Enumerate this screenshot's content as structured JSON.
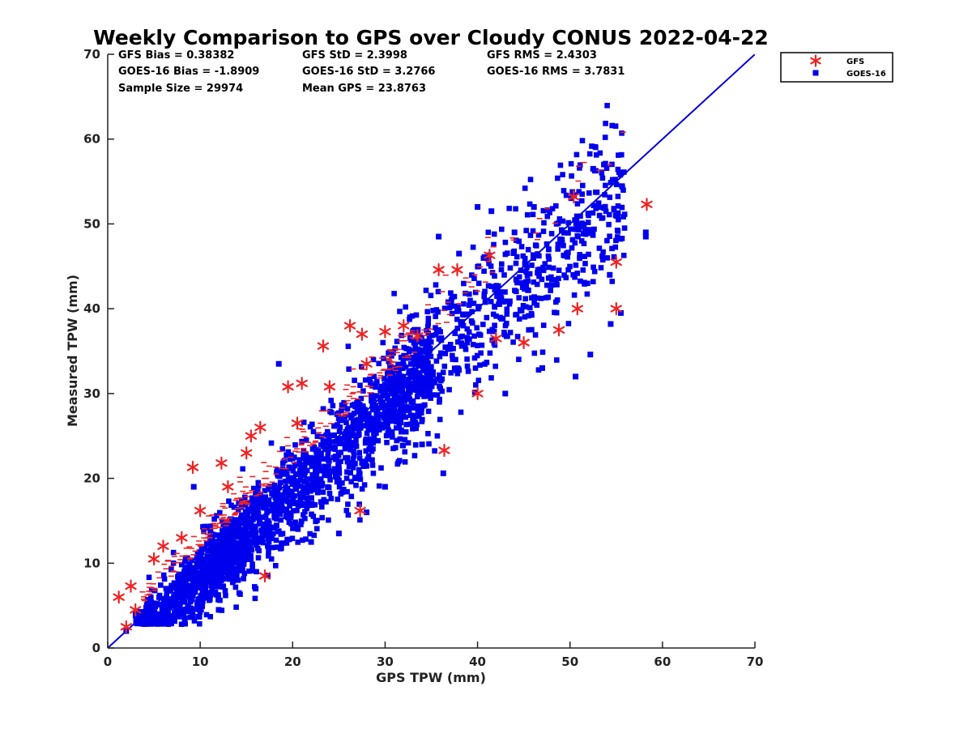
{
  "chart_data": {
    "type": "scatter",
    "title": "Weekly Comparison to GPS over Cloudy CONUS 2022-04-22",
    "xlabel": "GPS TPW (mm)",
    "ylabel": "Measured TPW (mm)",
    "xlim": [
      0,
      70
    ],
    "ylim": [
      0,
      70
    ],
    "x_ticks": [
      "0",
      "10",
      "20",
      "30",
      "40",
      "50",
      "60",
      "70"
    ],
    "y_ticks": [
      "0",
      "10",
      "20",
      "30",
      "40",
      "50",
      "60",
      "70"
    ],
    "grid": false,
    "legend_position": "outside top-right",
    "stats": [
      "GFS Bias = 0.38382",
      "GFS StD = 2.3998",
      "GFS RMS = 2.4303",
      "GOES-16 Bias = -1.8909",
      "GOES-16 StD = 3.2766",
      "GOES-16 RMS = 3.7831",
      "Sample Size = 29974",
      "Mean GPS = 23.8763"
    ],
    "reference_line": {
      "x": [
        0,
        70
      ],
      "y": [
        0,
        70
      ],
      "color": "#0000dd"
    },
    "series": [
      {
        "name": "GOES-16",
        "marker": "square",
        "color": "#0000ee",
        "summary": {
          "bias": -1.8909,
          "std": 3.2766,
          "n": 29974
        },
        "points": [
          [
            2.0,
            2.0
          ],
          [
            9.3,
            19.0
          ],
          [
            18.5,
            33.5
          ],
          [
            40.0,
            52.0
          ],
          [
            50.6,
            32.0
          ],
          [
            52.2,
            34.6
          ],
          [
            54.4,
            38.2
          ],
          [
            58.2,
            48.5
          ],
          [
            58.2,
            49.0
          ],
          [
            35.8,
            48.5
          ],
          [
            46.1,
            52.0
          ],
          [
            53.7,
            57.0
          ],
          [
            52.5,
            56.5
          ],
          [
            28.0,
            16.0
          ],
          [
            36.3,
            20.6
          ],
          [
            34.0,
            24.0
          ],
          [
            25.0,
            13.5
          ],
          [
            12.0,
            4.5
          ],
          [
            5.0,
            3.0
          ],
          [
            54.3,
            44.0
          ],
          [
            55.5,
            39.5
          ],
          [
            47.0,
            33.0
          ],
          [
            43.0,
            30.0
          ],
          [
            41.5,
            51.5
          ],
          [
            44.0,
            49.0
          ],
          [
            38.0,
            46.5
          ],
          [
            30.0,
            19.0
          ],
          [
            22.0,
            12.5
          ],
          [
            16.0,
            7.0
          ],
          [
            8.0,
            8.0
          ]
        ]
      },
      {
        "name": "GFS",
        "marker": "asterisk",
        "color": "#ee2222",
        "summary": {
          "bias": 0.38382,
          "std": 2.3998,
          "n": 29974
        },
        "points": [
          [
            2.0,
            2.5
          ],
          [
            1.2,
            6.0
          ],
          [
            2.5,
            7.3
          ],
          [
            9.2,
            21.3
          ],
          [
            12.3,
            21.8
          ],
          [
            10.0,
            16.2
          ],
          [
            15.0,
            23.0
          ],
          [
            16.5,
            26.0
          ],
          [
            19.5,
            30.8
          ],
          [
            23.3,
            35.6
          ],
          [
            26.2,
            38.0
          ],
          [
            27.3,
            16.2
          ],
          [
            36.4,
            23.3
          ],
          [
            35.8,
            44.6
          ],
          [
            37.8,
            44.6
          ],
          [
            41.3,
            46.3
          ],
          [
            50.8,
            40.0
          ],
          [
            55.0,
            40.0
          ],
          [
            48.8,
            37.5
          ],
          [
            50.4,
            53.2
          ],
          [
            58.3,
            52.3
          ],
          [
            55.0,
            45.5
          ],
          [
            32.0,
            38.0
          ],
          [
            28.0,
            33.5
          ],
          [
            40.0,
            30.0
          ],
          [
            20.5,
            26.5
          ],
          [
            15.5,
            25.0
          ],
          [
            17.0,
            8.5
          ],
          [
            21.0,
            31.2
          ],
          [
            24.0,
            30.8
          ],
          [
            30.0,
            37.3
          ],
          [
            33.5,
            36.8
          ],
          [
            45.0,
            36.0
          ],
          [
            42.0,
            36.5
          ],
          [
            8.0,
            13.0
          ],
          [
            5.0,
            10.5
          ],
          [
            13.0,
            19.0
          ],
          [
            3.0,
            4.5
          ],
          [
            6.0,
            12.0
          ],
          [
            27.5,
            37.0
          ]
        ]
      }
    ]
  }
}
